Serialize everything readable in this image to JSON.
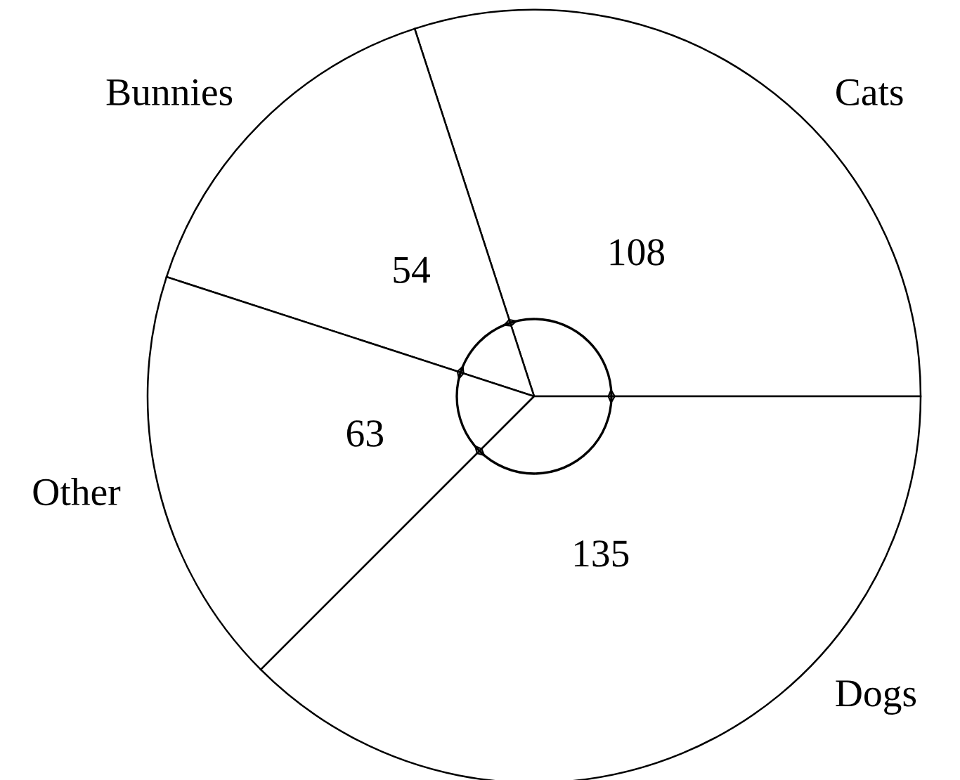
{
  "chart_data": {
    "type": "pie",
    "categories": [
      "Cats",
      "Bunnies",
      "Other",
      "Dogs"
    ],
    "values": [
      108,
      54,
      63,
      135
    ],
    "colors": [
      "#ffffff",
      "#ffffff",
      "#ffffff",
      "#ffffff"
    ],
    "data_labels": true,
    "legend": false
  }
}
